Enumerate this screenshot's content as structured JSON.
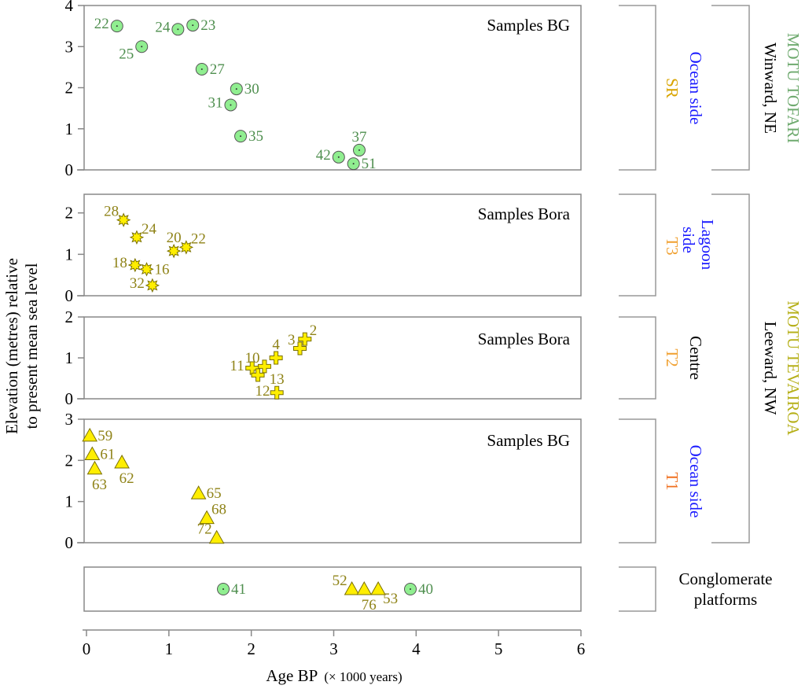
{
  "chart_data": {
    "type": "scatter",
    "title": "",
    "xlabel": "Age BP",
    "xlabel_suffix": "(× 1000 years)",
    "ylabel_line1": "Elevation (metres) relative",
    "ylabel_line2": "to present mean sea level",
    "xlim": [
      0,
      6
    ],
    "x_ticks": [
      "0",
      "1",
      "2",
      "3",
      "4",
      "5",
      "6"
    ],
    "grid": false,
    "colors": {
      "circle_fill": "#90ee90",
      "circle_text": "#4f8f4f",
      "yellow_fill": "#ffee00",
      "yellow_text": "#8f8318",
      "axis": "#888888",
      "blue_text": "#1a1aff",
      "orange_text": "#f0a030",
      "tofari_text": "#6faa6f",
      "tevairoa_text": "#b6b01a"
    },
    "panels": [
      {
        "id": "panel-sr",
        "title": "Samples BG",
        "ylim": [
          0,
          4
        ],
        "y_ticks": [
          "0",
          "1",
          "2",
          "3",
          "4"
        ],
        "marker": "circle",
        "points": [
          {
            "label": "22",
            "x": 0.37,
            "y": 3.5,
            "label_pos": "left"
          },
          {
            "label": "25",
            "x": 0.67,
            "y": 3.0,
            "label_pos": "left-below"
          },
          {
            "label": "24",
            "x": 1.11,
            "y": 3.42,
            "label_pos": "left"
          },
          {
            "label": "23",
            "x": 1.29,
            "y": 3.52,
            "label_pos": "right"
          },
          {
            "label": "27",
            "x": 1.4,
            "y": 2.45,
            "label_pos": "right"
          },
          {
            "label": "30",
            "x": 1.82,
            "y": 1.97,
            "label_pos": "right"
          },
          {
            "label": "31",
            "x": 1.75,
            "y": 1.58,
            "label_pos": "left"
          },
          {
            "label": "35",
            "x": 1.87,
            "y": 0.82,
            "label_pos": "right"
          },
          {
            "label": "37",
            "x": 3.31,
            "y": 0.48,
            "label_pos": "above"
          },
          {
            "label": "42",
            "x": 3.06,
            "y": 0.31,
            "label_pos": "left"
          },
          {
            "label": "51",
            "x": 3.24,
            "y": 0.15,
            "label_pos": "right"
          }
        ]
      },
      {
        "id": "panel-t3",
        "title": "Samples Bora",
        "ylim": [
          0,
          2.45
        ],
        "y_ticks": [
          "0",
          "1",
          "2"
        ],
        "marker": "asterisk",
        "points": [
          {
            "label": "28",
            "x": 0.45,
            "y": 1.83,
            "label_pos": "left-above"
          },
          {
            "label": "24",
            "x": 0.61,
            "y": 1.41,
            "label_pos": "right-above"
          },
          {
            "label": "20",
            "x": 1.06,
            "y": 1.08,
            "label_pos": "above"
          },
          {
            "label": "22",
            "x": 1.21,
            "y": 1.17,
            "label_pos": "right-above"
          },
          {
            "label": "18",
            "x": 0.59,
            "y": 0.74,
            "label_pos": "left"
          },
          {
            "label": "16",
            "x": 0.73,
            "y": 0.64,
            "label_pos": "right"
          },
          {
            "label": "32",
            "x": 0.8,
            "y": 0.25,
            "label_pos": "left"
          }
        ]
      },
      {
        "id": "panel-t2",
        "title": "Samples Bora",
        "ylim": [
          0,
          2
        ],
        "y_ticks": [
          "0",
          "1",
          "2"
        ],
        "marker": "plus",
        "points": [
          {
            "label": "2",
            "x": 2.65,
            "y": 1.46,
            "label_pos": "right-above"
          },
          {
            "label": "3",
            "x": 2.59,
            "y": 1.23,
            "label_pos": "left-above"
          },
          {
            "label": "4",
            "x": 2.3,
            "y": 1.0,
            "label_pos": "above"
          },
          {
            "label": "10",
            "x": 2.16,
            "y": 0.79,
            "label_pos": "left-above"
          },
          {
            "label": "11",
            "x": 2.01,
            "y": 0.75,
            "label_pos": "left"
          },
          {
            "label": "12",
            "x": 2.08,
            "y": 0.58,
            "label_pos": "below"
          },
          {
            "label": "13",
            "x": 2.31,
            "y": 0.15,
            "label_pos": "above"
          }
        ]
      },
      {
        "id": "panel-t1",
        "title": "Samples BG",
        "ylim": [
          0,
          3
        ],
        "y_ticks": [
          "0",
          "1",
          "2",
          "3"
        ],
        "marker": "triangle",
        "points": [
          {
            "label": "59",
            "x": 0.04,
            "y": 2.6,
            "label_pos": "right"
          },
          {
            "label": "61",
            "x": 0.07,
            "y": 2.15,
            "label_pos": "right"
          },
          {
            "label": "63",
            "x": 0.1,
            "y": 1.8,
            "label_pos": "below"
          },
          {
            "label": "62",
            "x": 0.43,
            "y": 1.95,
            "label_pos": "below"
          },
          {
            "label": "65",
            "x": 1.36,
            "y": 1.2,
            "label_pos": "right"
          },
          {
            "label": "68",
            "x": 1.46,
            "y": 0.6,
            "label_pos": "right-above"
          },
          {
            "label": "72",
            "x": 1.58,
            "y": 0.12,
            "label_pos": "left-above"
          }
        ]
      },
      {
        "id": "panel-conglomerate",
        "title": "",
        "ylim": [
          0,
          1
        ],
        "y_ticks": [],
        "marker": "mixed",
        "points": [
          {
            "label": "41",
            "x": 1.66,
            "y": 0.5,
            "marker": "circle",
            "label_pos": "right"
          },
          {
            "label": "52",
            "x": 3.22,
            "y": 0.5,
            "marker": "triangle",
            "label_pos": "left-above"
          },
          {
            "label": "76",
            "x": 3.37,
            "y": 0.5,
            "marker": "triangle",
            "label_pos": "below"
          },
          {
            "label": "53",
            "x": 3.54,
            "y": 0.5,
            "marker": "triangle",
            "label_pos": "right-below"
          },
          {
            "label": "40",
            "x": 3.93,
            "y": 0.5,
            "marker": "circle",
            "label_pos": "right"
          }
        ]
      }
    ],
    "side_labels": {
      "sr": {
        "side": "Ocean side",
        "code": "SR"
      },
      "t3": {
        "side_line1": "Lagoon",
        "side_line2": "side",
        "code": "T3"
      },
      "t2": {
        "side": "Centre",
        "code": "T2"
      },
      "t1": {
        "side": "Ocean side",
        "code": "T1"
      },
      "conglomerate_line1": "Conglomerate",
      "conglomerate_line2": "platforms",
      "tofari_name": "MOTU TOFARI",
      "tofari_dir": "Winward, NE",
      "tevairoa_name": "MOTU TEVAIROA",
      "tevairoa_dir": "Leeward, NW"
    }
  }
}
